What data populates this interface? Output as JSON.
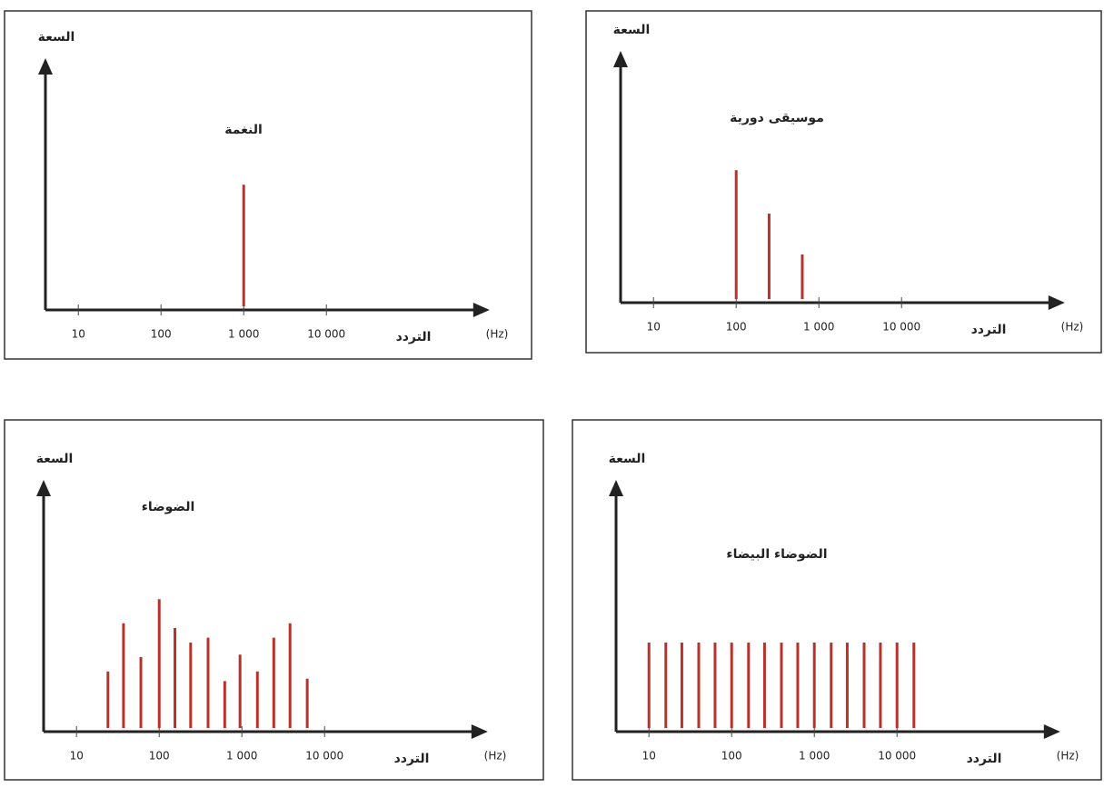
{
  "chart_data": [
    {
      "type": "bar",
      "annotation": "النغمة",
      "y_label": "السعة",
      "x_label": "التردد",
      "x_unit": "(Hz)",
      "log_x": true,
      "color": "#b8322b",
      "x": [
        1000
      ],
      "values": [
        52
      ],
      "xlim": [
        4,
        500000
      ],
      "ylim": [
        0,
        100
      ],
      "xticks": [
        10,
        100,
        {
          "value": 1000,
          "label": "1 000"
        },
        {
          "value": 10000,
          "label": "10 000"
        }
      ]
    },
    {
      "type": "bar",
      "annotation": "موسيقى دورية",
      "y_label": "السعة",
      "x_label": "التردد",
      "x_unit": "(Hz)",
      "log_x": true,
      "color": "#b8322b",
      "x": [
        100,
        250,
        630
      ],
      "values": [
        55,
        37,
        20
      ],
      "xlim": [
        4,
        500000
      ],
      "ylim": [
        0,
        100
      ],
      "xticks": [
        10,
        100,
        {
          "value": 1000,
          "label": "1 000"
        },
        {
          "value": 10000,
          "label": "10 000"
        }
      ]
    },
    {
      "type": "bar",
      "annotation": "الضوضاء",
      "y_label": "السعة",
      "x_label": "التردد",
      "x_unit": "(Hz)",
      "log_x": true,
      "color": "#b8322b",
      "x": [
        24,
        37,
        60,
        100,
        155,
        240,
        390,
        620,
        950,
        1540,
        2430,
        3820,
        6170
      ],
      "values": [
        25,
        45,
        31,
        55,
        43,
        37,
        39,
        21,
        32,
        25,
        39,
        45,
        22
      ],
      "xlim": [
        4,
        500000
      ],
      "ylim": [
        0,
        100
      ],
      "xticks": [
        10,
        100,
        {
          "value": 1000,
          "label": "1 000"
        },
        {
          "value": 10000,
          "label": "10 000"
        }
      ]
    },
    {
      "type": "bar",
      "annotation": "الضوضاء البيضاء",
      "y_label": "السعة",
      "x_label": "التردد",
      "x_unit": "(Hz)",
      "log_x": true,
      "color": "#b8322b",
      "x": [
        10,
        16,
        25,
        40,
        63,
        100,
        160,
        250,
        400,
        630,
        1000,
        1600,
        2500,
        4000,
        6300,
        10000,
        16000
      ],
      "values": [
        37,
        37,
        37,
        37,
        37,
        37,
        37,
        37,
        37,
        37,
        37,
        37,
        37,
        37,
        37,
        37,
        37
      ],
      "xlim": [
        4,
        500000
      ],
      "ylim": [
        0,
        100
      ],
      "xticks": [
        10,
        100,
        {
          "value": 1000,
          "label": "1 000"
        },
        {
          "value": 10000,
          "label": "10 000"
        }
      ]
    }
  ]
}
